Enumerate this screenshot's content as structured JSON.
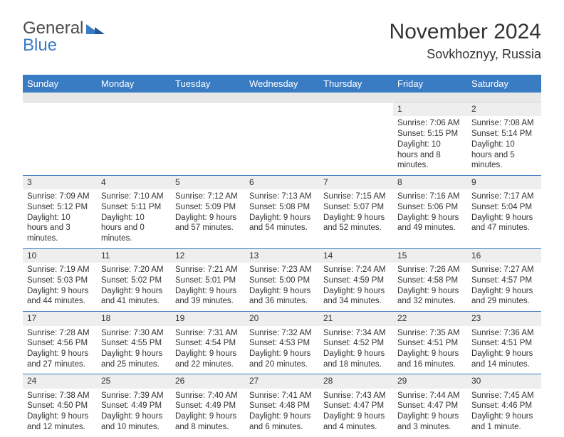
{
  "logo": {
    "general": "General",
    "blue": "Blue"
  },
  "title": "November 2024",
  "location": "Sovkhoznyy, Russia",
  "colors": {
    "header_bg": "#3a7cc4",
    "header_text": "#ffffff",
    "subhead_bg": "#e8e8e8",
    "grid_line": "#3a7cc4",
    "daynum_bg": "#eeeeee",
    "text": "#333333",
    "background": "#ffffff"
  },
  "columns": [
    "Sunday",
    "Monday",
    "Tuesday",
    "Wednesday",
    "Thursday",
    "Friday",
    "Saturday"
  ],
  "weeks": [
    [
      {
        "n": "",
        "sunrise": "",
        "sunset": "",
        "daylight": ""
      },
      {
        "n": "",
        "sunrise": "",
        "sunset": "",
        "daylight": ""
      },
      {
        "n": "",
        "sunrise": "",
        "sunset": "",
        "daylight": ""
      },
      {
        "n": "",
        "sunrise": "",
        "sunset": "",
        "daylight": ""
      },
      {
        "n": "",
        "sunrise": "",
        "sunset": "",
        "daylight": ""
      },
      {
        "n": "1",
        "sunrise": "Sunrise: 7:06 AM",
        "sunset": "Sunset: 5:15 PM",
        "daylight": "Daylight: 10 hours and 8 minutes."
      },
      {
        "n": "2",
        "sunrise": "Sunrise: 7:08 AM",
        "sunset": "Sunset: 5:14 PM",
        "daylight": "Daylight: 10 hours and 5 minutes."
      }
    ],
    [
      {
        "n": "3",
        "sunrise": "Sunrise: 7:09 AM",
        "sunset": "Sunset: 5:12 PM",
        "daylight": "Daylight: 10 hours and 3 minutes."
      },
      {
        "n": "4",
        "sunrise": "Sunrise: 7:10 AM",
        "sunset": "Sunset: 5:11 PM",
        "daylight": "Daylight: 10 hours and 0 minutes."
      },
      {
        "n": "5",
        "sunrise": "Sunrise: 7:12 AM",
        "sunset": "Sunset: 5:09 PM",
        "daylight": "Daylight: 9 hours and 57 minutes."
      },
      {
        "n": "6",
        "sunrise": "Sunrise: 7:13 AM",
        "sunset": "Sunset: 5:08 PM",
        "daylight": "Daylight: 9 hours and 54 minutes."
      },
      {
        "n": "7",
        "sunrise": "Sunrise: 7:15 AM",
        "sunset": "Sunset: 5:07 PM",
        "daylight": "Daylight: 9 hours and 52 minutes."
      },
      {
        "n": "8",
        "sunrise": "Sunrise: 7:16 AM",
        "sunset": "Sunset: 5:06 PM",
        "daylight": "Daylight: 9 hours and 49 minutes."
      },
      {
        "n": "9",
        "sunrise": "Sunrise: 7:17 AM",
        "sunset": "Sunset: 5:04 PM",
        "daylight": "Daylight: 9 hours and 47 minutes."
      }
    ],
    [
      {
        "n": "10",
        "sunrise": "Sunrise: 7:19 AM",
        "sunset": "Sunset: 5:03 PM",
        "daylight": "Daylight: 9 hours and 44 minutes."
      },
      {
        "n": "11",
        "sunrise": "Sunrise: 7:20 AM",
        "sunset": "Sunset: 5:02 PM",
        "daylight": "Daylight: 9 hours and 41 minutes."
      },
      {
        "n": "12",
        "sunrise": "Sunrise: 7:21 AM",
        "sunset": "Sunset: 5:01 PM",
        "daylight": "Daylight: 9 hours and 39 minutes."
      },
      {
        "n": "13",
        "sunrise": "Sunrise: 7:23 AM",
        "sunset": "Sunset: 5:00 PM",
        "daylight": "Daylight: 9 hours and 36 minutes."
      },
      {
        "n": "14",
        "sunrise": "Sunrise: 7:24 AM",
        "sunset": "Sunset: 4:59 PM",
        "daylight": "Daylight: 9 hours and 34 minutes."
      },
      {
        "n": "15",
        "sunrise": "Sunrise: 7:26 AM",
        "sunset": "Sunset: 4:58 PM",
        "daylight": "Daylight: 9 hours and 32 minutes."
      },
      {
        "n": "16",
        "sunrise": "Sunrise: 7:27 AM",
        "sunset": "Sunset: 4:57 PM",
        "daylight": "Daylight: 9 hours and 29 minutes."
      }
    ],
    [
      {
        "n": "17",
        "sunrise": "Sunrise: 7:28 AM",
        "sunset": "Sunset: 4:56 PM",
        "daylight": "Daylight: 9 hours and 27 minutes."
      },
      {
        "n": "18",
        "sunrise": "Sunrise: 7:30 AM",
        "sunset": "Sunset: 4:55 PM",
        "daylight": "Daylight: 9 hours and 25 minutes."
      },
      {
        "n": "19",
        "sunrise": "Sunrise: 7:31 AM",
        "sunset": "Sunset: 4:54 PM",
        "daylight": "Daylight: 9 hours and 22 minutes."
      },
      {
        "n": "20",
        "sunrise": "Sunrise: 7:32 AM",
        "sunset": "Sunset: 4:53 PM",
        "daylight": "Daylight: 9 hours and 20 minutes."
      },
      {
        "n": "21",
        "sunrise": "Sunrise: 7:34 AM",
        "sunset": "Sunset: 4:52 PM",
        "daylight": "Daylight: 9 hours and 18 minutes."
      },
      {
        "n": "22",
        "sunrise": "Sunrise: 7:35 AM",
        "sunset": "Sunset: 4:51 PM",
        "daylight": "Daylight: 9 hours and 16 minutes."
      },
      {
        "n": "23",
        "sunrise": "Sunrise: 7:36 AM",
        "sunset": "Sunset: 4:51 PM",
        "daylight": "Daylight: 9 hours and 14 minutes."
      }
    ],
    [
      {
        "n": "24",
        "sunrise": "Sunrise: 7:38 AM",
        "sunset": "Sunset: 4:50 PM",
        "daylight": "Daylight: 9 hours and 12 minutes."
      },
      {
        "n": "25",
        "sunrise": "Sunrise: 7:39 AM",
        "sunset": "Sunset: 4:49 PM",
        "daylight": "Daylight: 9 hours and 10 minutes."
      },
      {
        "n": "26",
        "sunrise": "Sunrise: 7:40 AM",
        "sunset": "Sunset: 4:49 PM",
        "daylight": "Daylight: 9 hours and 8 minutes."
      },
      {
        "n": "27",
        "sunrise": "Sunrise: 7:41 AM",
        "sunset": "Sunset: 4:48 PM",
        "daylight": "Daylight: 9 hours and 6 minutes."
      },
      {
        "n": "28",
        "sunrise": "Sunrise: 7:43 AM",
        "sunset": "Sunset: 4:47 PM",
        "daylight": "Daylight: 9 hours and 4 minutes."
      },
      {
        "n": "29",
        "sunrise": "Sunrise: 7:44 AM",
        "sunset": "Sunset: 4:47 PM",
        "daylight": "Daylight: 9 hours and 3 minutes."
      },
      {
        "n": "30",
        "sunrise": "Sunrise: 7:45 AM",
        "sunset": "Sunset: 4:46 PM",
        "daylight": "Daylight: 9 hours and 1 minute."
      }
    ]
  ]
}
